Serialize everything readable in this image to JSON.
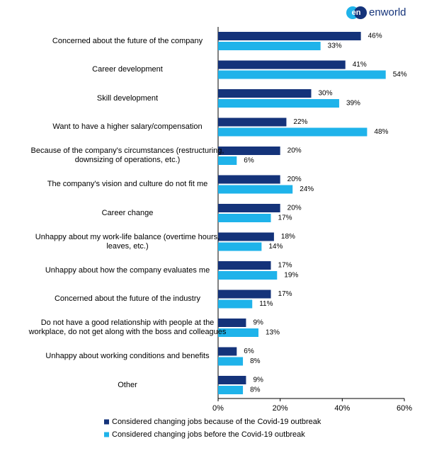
{
  "logo": {
    "badge": "en",
    "text": "enworld"
  },
  "chart_data": {
    "type": "bar",
    "orientation": "horizontal",
    "categories": [
      "Concerned about the future of the company",
      "Career development",
      "Skill development",
      "Want to have a higher salary/compensation",
      "Because of the company's circumstances (restructuring,\ndownsizing of operations, etc.)",
      "The company's vision and culture do not fit me",
      "Career change",
      "Unhappy about my work-life balance (overtime hours,\nleaves, etc.)",
      "Unhappy about how the company evaluates me",
      "Concerned about the future of the industry",
      "Do not have a good relationship with people at the\nworkplace, do not get along with the boss and colleagues",
      "Unhappy about working conditions and benefits",
      "Other"
    ],
    "series": [
      {
        "name": "Considered changing jobs because of the Covid-19 outbreak",
        "color": "#14337a",
        "values": [
          46,
          41,
          30,
          22,
          20,
          20,
          20,
          18,
          17,
          17,
          9,
          6,
          9
        ],
        "value_labels": [
          "46%",
          "41%",
          "30%",
          "22%",
          "20%",
          "20%",
          "20%",
          "18%",
          "17%",
          "17%",
          "9%",
          "6%",
          "9%"
        ]
      },
      {
        "name": "Considered changing jobs before the Covid-19 outbreak",
        "color": "#1fb3ea",
        "values": [
          33,
          54,
          39,
          48,
          6,
          24,
          17,
          14,
          19,
          11,
          13,
          8,
          8
        ],
        "value_labels": [
          "33%",
          "54%",
          "39%",
          "48%",
          "6%",
          "24%",
          "17%",
          "14%",
          "19%",
          "11%",
          "13%",
          "8%",
          "8%"
        ]
      }
    ],
    "xlim": [
      0,
      60
    ],
    "xticks": [
      {
        "value": 0,
        "label": "0%"
      },
      {
        "value": 20,
        "label": "20%"
      },
      {
        "value": 40,
        "label": "40%"
      },
      {
        "value": 60,
        "label": "60%"
      }
    ],
    "legend": "bottom"
  }
}
